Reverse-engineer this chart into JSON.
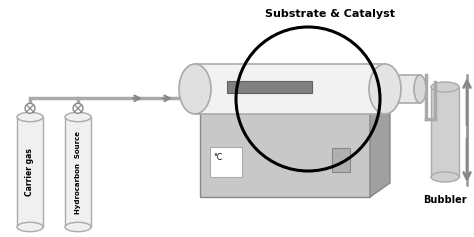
{
  "title": "Substrate & Catalyst",
  "labels": {
    "carrier_gas": "Carrier gas",
    "hydrocarbon_source": "Hydrocarbon  Source",
    "bubbler": "Bubbler",
    "temperature": "°C"
  },
  "colors": {
    "background": "#ffffff",
    "cylinder_fill": "#f0f0f0",
    "cylinder_stroke": "#aaaaaa",
    "cylinder_edge": "#cccccc",
    "tube_fill": "#f2f2f2",
    "tube_stroke": "#aaaaaa",
    "tube_inner": "#e8e8e8",
    "substrate": "#808080",
    "arrow": "#999999",
    "box_fill": "#c8c8c8",
    "box_side": "#a0a0a0",
    "box_top": "#d8d8d8",
    "circle_stroke": "#111111",
    "valve": "#888888",
    "pipe_color": "#aaaaaa",
    "bubbler_fill": "#d0d0d0",
    "bubbler_stroke": "#aaaaaa"
  }
}
